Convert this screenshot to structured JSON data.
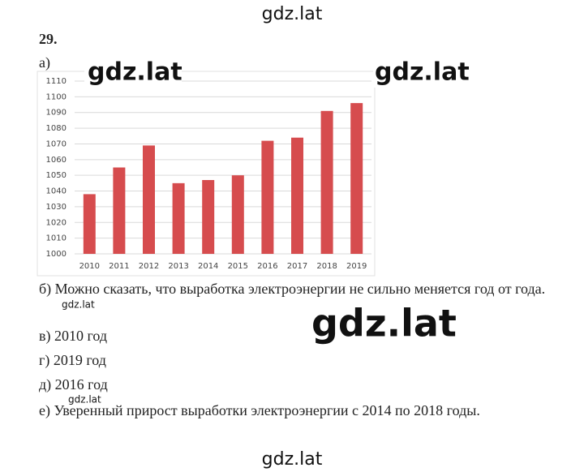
{
  "watermarks": [
    "gdz.lat",
    "gdz.lat",
    "gdz.lat",
    "gdz.lat",
    "gdz.lat",
    "gdz.lat",
    "gdz.lat"
  ],
  "problem_number": "29.",
  "part_a": "а)",
  "chart_data": {
    "type": "bar",
    "categories": [
      "2010",
      "2011",
      "2012",
      "2013",
      "2014",
      "2015",
      "2016",
      "2017",
      "2018",
      "2019"
    ],
    "values": [
      1038,
      1055,
      1069,
      1045,
      1047,
      1050,
      1072,
      1074,
      1091,
      1096
    ],
    "color": "#d64c4e",
    "ylim": [
      1000,
      1110
    ],
    "yticks": [
      1000,
      1010,
      1020,
      1030,
      1040,
      1050,
      1060,
      1070,
      1080,
      1090,
      1100,
      1110
    ],
    "grid": true
  },
  "answers": [
    "б) Можно сказать, что выработка электроэнергии не сильно меняется год от года.",
    "в) 2010 год",
    "г) 2019 год",
    "д) 2016 год",
    "е) Уверенный прирост выработки электроэнергии с 2014 по 2018 годы."
  ]
}
